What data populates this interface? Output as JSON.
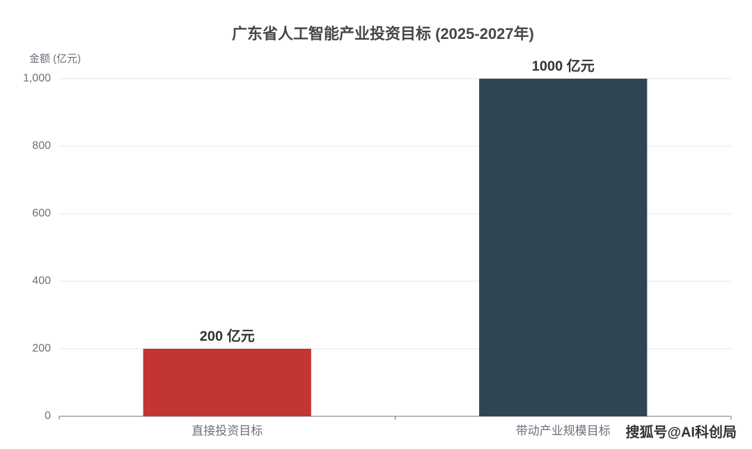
{
  "chart_data": {
    "type": "bar",
    "title": "广东省人工智能产业投资目标 (2025-2027年)",
    "y_label": "金额 (亿元)",
    "categories": [
      "直接投资目标",
      "带动产业规模目标"
    ],
    "values": [
      200,
      1000
    ],
    "value_labels": [
      "200 亿元",
      "1000 亿元"
    ],
    "colors": [
      "#c23531",
      "#2f4554"
    ],
    "ylim": [
      0,
      1000
    ],
    "yticks": [
      0,
      200,
      400,
      600,
      800,
      {
        "value": 1000,
        "label": "1,000"
      }
    ],
    "grid": true,
    "annotation": "搜狐号@AI科创局"
  }
}
